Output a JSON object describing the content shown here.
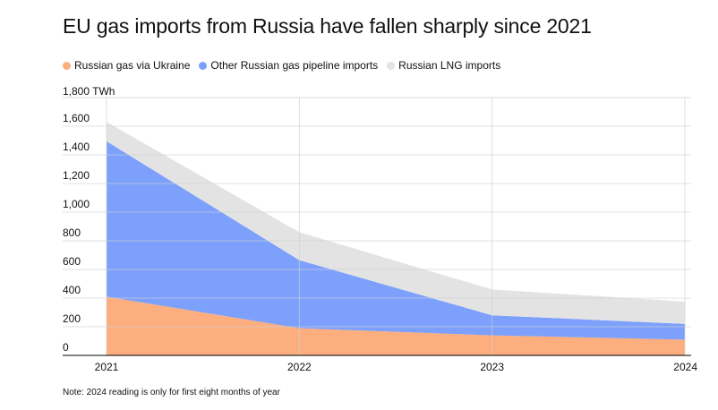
{
  "title": "EU gas imports from Russia have fallen sharply since 2021",
  "note": "Note: 2024 reading is only for first eight months of year",
  "colors": {
    "ukraine": "#FCAE7E",
    "pipeline": "#7CA0FB",
    "lng": "#E3E3E3",
    "grid": "#D0D0D0",
    "axis": "#000000"
  },
  "chart_data": {
    "type": "area",
    "stacked": true,
    "title": "EU gas imports from Russia have fallen sharply since 2021",
    "unit_label": "1,800 TWh",
    "x": [
      "2021",
      "2022",
      "2023",
      "2024"
    ],
    "y_ticks": [
      "0",
      "200",
      "400",
      "600",
      "800",
      "1,000",
      "1,200",
      "1,400",
      "1,600"
    ],
    "ylim": [
      0,
      1800
    ],
    "grid": true,
    "legend_position": "top-left",
    "series": [
      {
        "name": "Russian gas via Ukraine",
        "color_key": "ukraine",
        "values": [
          410,
          190,
          140,
          110
        ]
      },
      {
        "name": "Other Russian gas pipeline imports",
        "color_key": "pipeline",
        "values": [
          1085,
          475,
          140,
          110
        ]
      },
      {
        "name": "Russian LNG imports",
        "color_key": "lng",
        "values": [
          135,
          195,
          180,
          155
        ]
      }
    ]
  }
}
